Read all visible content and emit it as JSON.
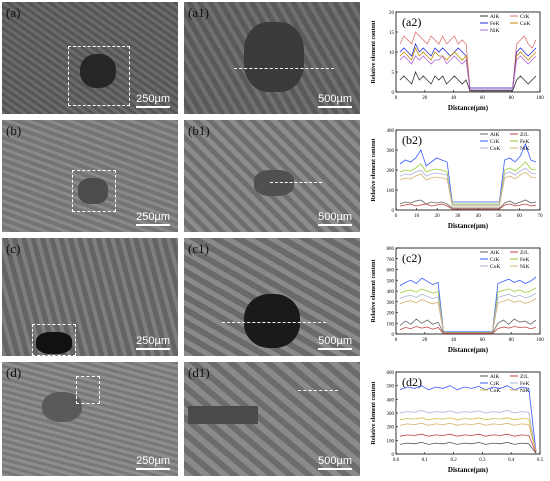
{
  "rows": [
    {
      "sem_label": "(a)",
      "sem_scale": "250µm",
      "zoom_label": "(a1)",
      "zoom_scale": "500µm",
      "chart_label": "(a2)"
    },
    {
      "sem_label": "(b)",
      "sem_scale": "250µm",
      "zoom_label": "(b1)",
      "zoom_scale": "500µm",
      "chart_label": "(b2)"
    },
    {
      "sem_label": "(c)",
      "sem_scale": "250µm",
      "zoom_label": "(c1)",
      "zoom_scale": "500µm",
      "chart_label": "(c2)"
    },
    {
      "sem_label": "(d)",
      "sem_scale": "250µm",
      "zoom_label": "(d1)",
      "zoom_scale": "500µm",
      "chart_label": "(d2)"
    }
  ],
  "colors": {
    "Al": "#1f3cff",
    "Cr": "#e05a5a",
    "Fe": "#3a3ae0",
    "Co": "#c8a400",
    "Ni": "#9a6ad0",
    "Zr": "#444444"
  },
  "chart_data": [
    {
      "type": "line",
      "title": "(a2)",
      "xlabel": "Distance(µm)",
      "ylabel": "Relative element content",
      "xlim": [
        0,
        100
      ],
      "ylim": [
        0,
        20
      ],
      "xticks": [
        "0",
        "20",
        "40",
        "60",
        "80",
        "100"
      ],
      "yticks": [
        "0",
        "5",
        "10",
        "15",
        "20"
      ],
      "legend": [
        "AlK",
        "CrK",
        "FeK",
        "CoK",
        "NiK"
      ],
      "legend_position": "top-right",
      "series": [
        {
          "name": "CrK",
          "color": "#e07070",
          "values": [
            12,
            14,
            13,
            12,
            15,
            14,
            13,
            12,
            14,
            13,
            12,
            14,
            12,
            13,
            14,
            12,
            13,
            12,
            1,
            1,
            1,
            1,
            1,
            1,
            1,
            1,
            1,
            1,
            1,
            1,
            12,
            13,
            14,
            12,
            11,
            13
          ]
        },
        {
          "name": "FeK",
          "color": "#2b2bd0",
          "values": [
            10,
            11,
            10,
            9,
            12,
            10,
            11,
            10,
            9,
            11,
            10,
            11,
            10,
            9,
            10,
            11,
            10,
            9,
            1,
            1,
            1,
            1,
            1,
            1,
            1,
            1,
            1,
            1,
            1,
            1,
            10,
            11,
            10,
            9,
            10,
            11
          ]
        },
        {
          "name": "CoK",
          "color": "#c48a00",
          "values": [
            9,
            10,
            9,
            8,
            11,
            9,
            10,
            9,
            8,
            10,
            9,
            9,
            8,
            9,
            10,
            9,
            8,
            9,
            0.5,
            0.5,
            0.5,
            0.5,
            0.5,
            0.5,
            0.5,
            0.5,
            0.5,
            0.5,
            0.5,
            0.5,
            9,
            10,
            9,
            8,
            9,
            10
          ]
        },
        {
          "name": "NiK",
          "color": "#b068e0",
          "values": [
            8,
            9,
            8,
            7,
            9,
            8,
            9,
            8,
            7,
            8,
            8,
            9,
            7,
            8,
            9,
            8,
            7,
            8,
            0.5,
            0.5,
            0.5,
            0.5,
            0.5,
            0.5,
            0.5,
            0.5,
            0.5,
            0.5,
            0.5,
            0.5,
            8,
            9,
            8,
            7,
            8,
            9
          ]
        },
        {
          "name": "AlK",
          "color": "#333333",
          "values": [
            3,
            4,
            3,
            2,
            5,
            3,
            4,
            3,
            2,
            4,
            3,
            4,
            2,
            3,
            4,
            3,
            2,
            3,
            0.3,
            0.3,
            0.3,
            0.3,
            0.3,
            0.3,
            0.3,
            0.3,
            0.3,
            0.3,
            0.3,
            0.3,
            3,
            4,
            3,
            2,
            3,
            4
          ]
        }
      ]
    },
    {
      "type": "line",
      "title": "(b2)",
      "xlabel": "Distance(µm)",
      "ylabel": "Relative element content",
      "xlim": [
        0,
        70
      ],
      "ylim": [
        0,
        400
      ],
      "xticks": [
        "0",
        "10",
        "20",
        "30",
        "40",
        "50",
        "60",
        "70"
      ],
      "yticks": [
        "0",
        "100",
        "200",
        "300",
        "400"
      ],
      "legend": [
        "AlK",
        "ZrL",
        "CrK",
        "FeK",
        "CoK",
        "NiK"
      ],
      "legend_position": "top-right",
      "series": [
        {
          "name": "CrK",
          "color": "#3a5aff",
          "values": [
            230,
            250,
            240,
            260,
            300,
            220,
            240,
            260,
            250,
            240,
            40,
            40,
            40,
            40,
            40,
            40,
            40,
            40,
            40,
            40,
            250,
            260,
            240,
            270,
            330,
            250,
            240
          ]
        },
        {
          "name": "FeK",
          "color": "#9acd32",
          "values": [
            190,
            200,
            195,
            210,
            230,
            190,
            200,
            205,
            200,
            190,
            30,
            30,
            30,
            30,
            30,
            30,
            30,
            30,
            30,
            30,
            200,
            210,
            195,
            215,
            240,
            205,
            200
          ]
        },
        {
          "name": "CoK",
          "color": "#b0b0d8",
          "values": [
            170,
            180,
            175,
            190,
            200,
            170,
            180,
            185,
            180,
            175,
            25,
            25,
            25,
            25,
            25,
            25,
            25,
            25,
            25,
            25,
            180,
            190,
            175,
            195,
            210,
            185,
            180
          ]
        },
        {
          "name": "NiK",
          "color": "#d8b070",
          "values": [
            150,
            160,
            155,
            170,
            180,
            150,
            160,
            165,
            160,
            155,
            20,
            20,
            20,
            20,
            20,
            20,
            20,
            20,
            20,
            20,
            160,
            170,
            155,
            175,
            190,
            165,
            160
          ]
        },
        {
          "name": "AlK",
          "color": "#666666",
          "values": [
            30,
            40,
            35,
            45,
            50,
            30,
            40,
            35,
            40,
            30,
            10,
            10,
            10,
            10,
            10,
            10,
            10,
            10,
            10,
            10,
            35,
            45,
            30,
            40,
            50,
            35,
            40
          ]
        },
        {
          "name": "ZrL",
          "color": "#c04040",
          "values": [
            20,
            25,
            30,
            20,
            25,
            30,
            20,
            25,
            30,
            20,
            5,
            5,
            5,
            5,
            5,
            5,
            5,
            5,
            5,
            5,
            25,
            30,
            20,
            25,
            30,
            20,
            25
          ]
        }
      ]
    },
    {
      "type": "line",
      "title": "(c2)",
      "xlabel": "Distance(µm)",
      "ylabel": "Relative element content",
      "xlim": [
        0,
        100
      ],
      "ylim": [
        0,
        800
      ],
      "xticks": [
        "0",
        "20",
        "40",
        "60",
        "80",
        "100"
      ],
      "yticks": [
        "0",
        "100",
        "200",
        "300",
        "400",
        "500",
        "600",
        "700",
        "800"
      ],
      "legend": [
        "AlK",
        "ZrL",
        "CrK",
        "FeK",
        "CoK",
        "NiK"
      ],
      "legend_position": "top-right",
      "series": [
        {
          "name": "CrK",
          "color": "#3a5aff",
          "values": [
            450,
            480,
            500,
            470,
            520,
            490,
            460,
            480,
            20,
            20,
            20,
            20,
            20,
            20,
            20,
            20,
            20,
            20,
            470,
            490,
            510,
            480,
            500,
            470,
            490,
            530
          ]
        },
        {
          "name": "FeK",
          "color": "#9acd32",
          "values": [
            380,
            400,
            410,
            390,
            420,
            400,
            380,
            395,
            15,
            15,
            15,
            15,
            15,
            15,
            15,
            15,
            15,
            15,
            390,
            405,
            420,
            395,
            410,
            385,
            400,
            430
          ]
        },
        {
          "name": "CoK",
          "color": "#b0b0d8",
          "values": [
            330,
            350,
            360,
            340,
            370,
            350,
            330,
            345,
            12,
            12,
            12,
            12,
            12,
            12,
            12,
            12,
            12,
            12,
            340,
            355,
            370,
            345,
            360,
            335,
            350,
            380
          ]
        },
        {
          "name": "NiK",
          "color": "#d8b070",
          "values": [
            280,
            300,
            310,
            290,
            320,
            300,
            280,
            295,
            10,
            10,
            10,
            10,
            10,
            10,
            10,
            10,
            10,
            10,
            290,
            305,
            320,
            295,
            310,
            285,
            300,
            330
          ]
        },
        {
          "name": "AlK",
          "color": "#666666",
          "values": [
            80,
            120,
            90,
            140,
            100,
            130,
            90,
            110,
            8,
            8,
            8,
            8,
            8,
            8,
            8,
            8,
            8,
            8,
            100,
            130,
            90,
            140,
            110,
            120,
            90,
            130
          ]
        },
        {
          "name": "ZrL",
          "color": "#c04040",
          "values": [
            40,
            60,
            50,
            70,
            55,
            65,
            45,
            60,
            5,
            5,
            5,
            5,
            5,
            5,
            5,
            5,
            5,
            5,
            50,
            65,
            55,
            70,
            60,
            65,
            50,
            60
          ]
        }
      ]
    },
    {
      "type": "line",
      "title": "(d2)",
      "xlabel": "Distance(µm)",
      "ylabel": "Relative element content",
      "xlim": [
        0,
        0.5
      ],
      "ylim": [
        0,
        600
      ],
      "xticks": [
        "0.0",
        "0.1",
        "0.2",
        "0.3",
        "0.4",
        "0.5"
      ],
      "yticks": [
        "0",
        "100",
        "200",
        "300",
        "400",
        "500",
        "600"
      ],
      "legend": [
        "AlK",
        "ZrL",
        "CrK",
        "FeK",
        "CoK",
        "NiK"
      ],
      "legend_position": "top-right",
      "series": [
        {
          "name": "CrK",
          "color": "#3a5aff",
          "values": [
            470,
            490,
            480,
            500,
            470,
            490,
            480,
            500,
            470,
            490,
            480,
            495,
            470,
            490,
            480,
            500,
            470,
            490,
            480,
            20
          ]
        },
        {
          "name": "FeK",
          "color": "#b0b0d8",
          "values": [
            300,
            310,
            305,
            320,
            300,
            310,
            305,
            315,
            300,
            310,
            305,
            315,
            300,
            310,
            305,
            320,
            300,
            310,
            305,
            15
          ]
        },
        {
          "name": "CoK",
          "color": "#d0c040",
          "values": [
            250,
            260,
            255,
            265,
            250,
            260,
            255,
            265,
            250,
            260,
            255,
            265,
            250,
            260,
            255,
            265,
            250,
            260,
            255,
            12
          ]
        },
        {
          "name": "NiK",
          "color": "#d8b070",
          "values": [
            210,
            220,
            215,
            225,
            210,
            220,
            215,
            225,
            210,
            220,
            215,
            225,
            210,
            220,
            215,
            225,
            210,
            220,
            215,
            10
          ]
        },
        {
          "name": "ZrL",
          "color": "#c04040",
          "values": [
            130,
            140,
            135,
            145,
            130,
            140,
            135,
            145,
            130,
            140,
            135,
            145,
            130,
            140,
            135,
            145,
            130,
            140,
            135,
            8
          ]
        },
        {
          "name": "AlK",
          "color": "#555555",
          "values": [
            70,
            80,
            75,
            85,
            70,
            80,
            75,
            85,
            70,
            80,
            75,
            85,
            70,
            80,
            75,
            85,
            70,
            80,
            75,
            5
          ]
        }
      ]
    }
  ]
}
